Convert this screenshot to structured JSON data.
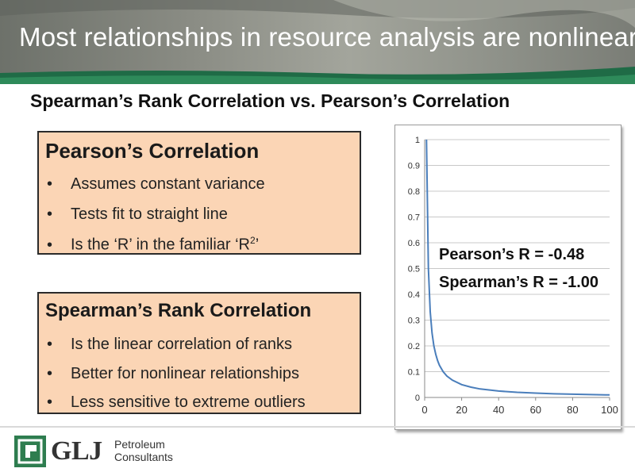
{
  "slide": {
    "title": "Most relationships in resource analysis are nonlinear",
    "subtitle": "Spearman’s Rank Correlation vs. Pearson’s Correlation"
  },
  "pearson_box": {
    "title": "Pearson’s Correlation",
    "bullets": [
      "Assumes constant variance",
      "Tests fit to straight line"
    ],
    "bullet3_prefix": "Is the ‘R’ in the familiar ‘R",
    "bullet3_sup": "2",
    "bullet3_suffix": "’"
  },
  "spearman_box": {
    "title": "Spearman’s Rank Correlation",
    "bullets": [
      "Is the linear correlation of ranks",
      "Better for nonlinear relationships",
      "Less sensitive to extreme outliers"
    ]
  },
  "bullet_glyph": "•",
  "chart_annotations": {
    "pearson": "Pearson’s R = -0.48",
    "spearman": "Spearman’s R = -1.00"
  },
  "chart_data": {
    "type": "line",
    "title": "",
    "xlabel": "",
    "ylabel": "",
    "xlim": [
      0,
      100
    ],
    "ylim": [
      0,
      1
    ],
    "x_ticks": [
      "0",
      "20",
      "40",
      "60",
      "80",
      "100"
    ],
    "y_ticks": [
      "0",
      "0.1",
      "0.2",
      "0.3",
      "0.4",
      "0.5",
      "0.6",
      "0.7",
      "0.8",
      "0.9",
      "1"
    ],
    "grid": "horizontal",
    "series": [
      {
        "color": "#4a7ebb",
        "x": [
          1,
          2,
          3,
          4,
          5,
          6,
          7,
          8,
          10,
          12,
          15,
          20,
          25,
          30,
          40,
          50,
          60,
          70,
          80,
          90,
          100
        ],
        "y": [
          1.0,
          0.5,
          0.333,
          0.25,
          0.2,
          0.167,
          0.143,
          0.125,
          0.1,
          0.083,
          0.067,
          0.05,
          0.04,
          0.033,
          0.025,
          0.02,
          0.017,
          0.014,
          0.0125,
          0.011,
          0.01
        ]
      }
    ]
  },
  "logo": {
    "wordmark": "GLJ",
    "line1": "Petroleum",
    "line2": "Consultants"
  },
  "colors": {
    "box_fill": "#fbd5b5",
    "banner_accent": "#2e7d4f",
    "series": "#4a7ebb"
  }
}
